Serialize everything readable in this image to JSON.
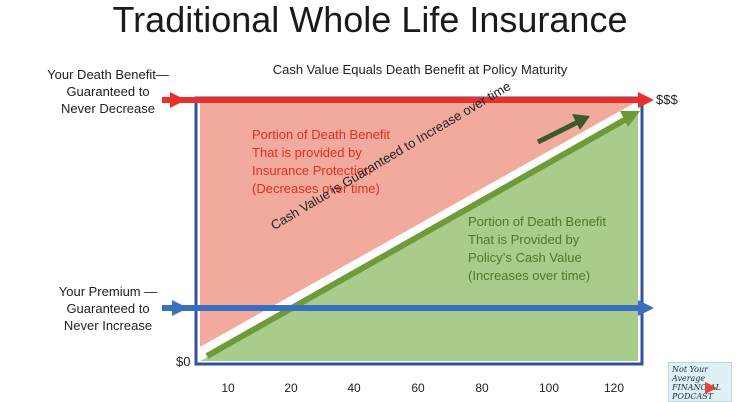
{
  "title": "Traditional Whole Life Insurance",
  "subtitle": "Cash Value Equals Death Benefit at Policy Maturity",
  "death_benefit_label": "Your Death Benefit—\nGuaranteed to\nNever Decrease",
  "premium_label": "Your Premium —\nGuaranteed to\nNever Increase",
  "y_top_label": "$$$",
  "y_zero_label": "$0",
  "x_ticks": [
    "10",
    "20",
    "40",
    "60",
    "80",
    "100",
    "120"
  ],
  "insurance_note": "Portion of Death Benefit\nThat is provided by\nInsurance Protection\n(Decreases over time)",
  "cash_note": "Portion of Death Benefit\nThat is Provided by\nPolicy’s Cash Value\n(Increases over time)",
  "diagonal_label": "Cash Value is Guaranteed to Increase over time",
  "logo_text": "Not Your Average\nFINANCIAL PODCAST",
  "colors": {
    "insurance_region": "#f2aa9c",
    "cash_region": "#a8cc8c",
    "death_benefit_arrow": "#e8302a",
    "premium_arrow": "#3a6fc0",
    "cash_arrow": "#6e9a3a",
    "frame": "#34509a"
  }
}
